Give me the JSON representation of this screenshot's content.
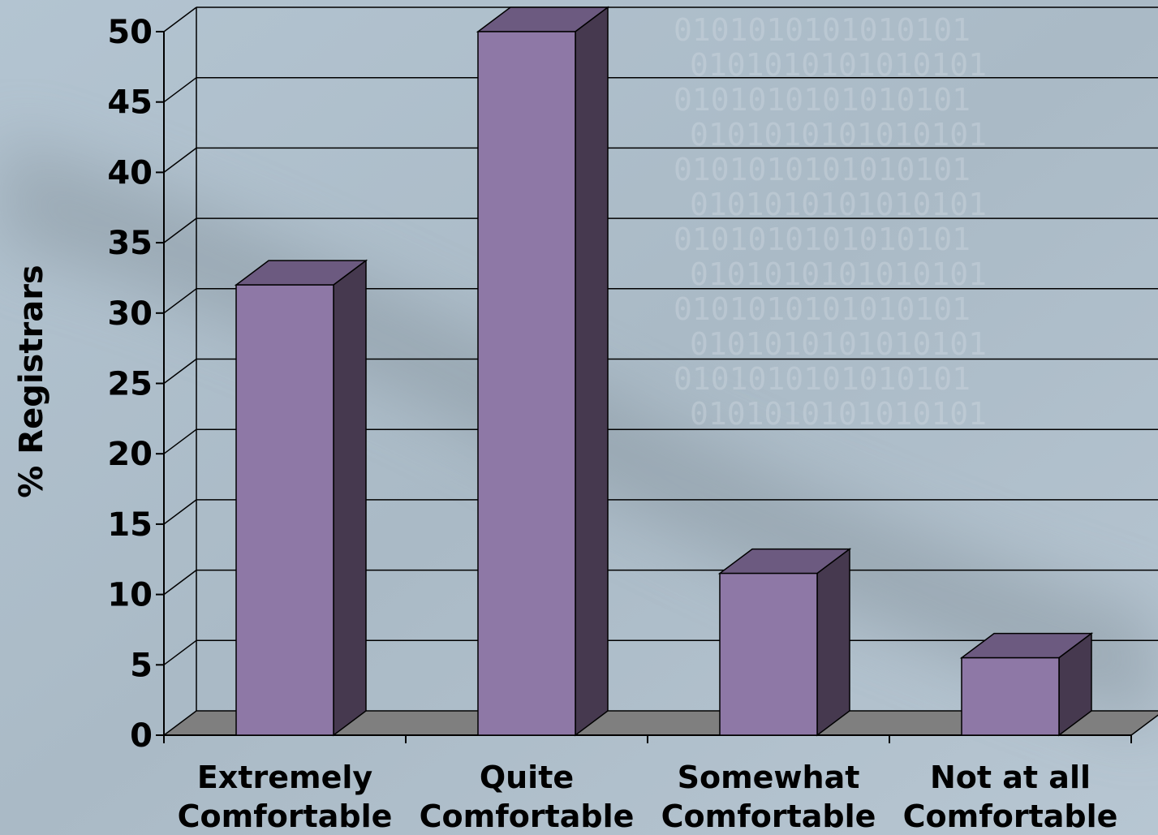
{
  "colors": {
    "background_light": "#b9c9d6",
    "background_shadow": "#8d9aa4",
    "bar_front": "#8e78a6",
    "bar_top": "#6c5a80",
    "bar_side": "#46394f",
    "floor": "#7f7f7f",
    "gridline": "#000000"
  },
  "chart_data": {
    "type": "bar",
    "style": "3d-column",
    "categories": [
      [
        "Extremely",
        "Comfortable"
      ],
      [
        "Quite",
        "Comfortable"
      ],
      [
        "Somewhat",
        "Comfortable"
      ],
      [
        "Not at all",
        "Comfortable"
      ]
    ],
    "values": [
      32,
      50,
      11.5,
      5.5
    ],
    "ylabel": "% Registrars",
    "ylim": [
      0,
      50
    ],
    "yticks": [
      0,
      5,
      10,
      15,
      20,
      25,
      30,
      35,
      40,
      45,
      50
    ],
    "grid": true
  }
}
